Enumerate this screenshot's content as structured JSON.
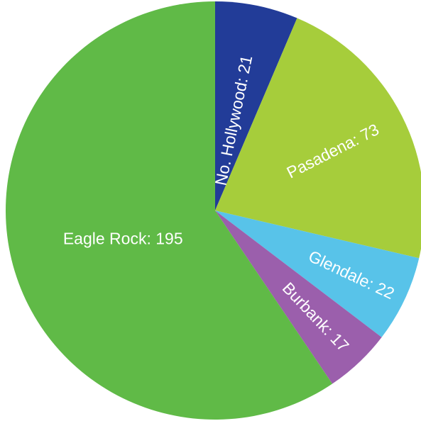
{
  "chart_data": {
    "type": "pie",
    "title": "",
    "start_angle_deg": 0,
    "direction": "clockwise",
    "slices": [
      {
        "label": "No. Hollywood",
        "value": 21,
        "display": "No. Hollywood: 21",
        "color": "#223c98"
      },
      {
        "label": "Pasadena",
        "value": 73,
        "display": "Pasadena: 73",
        "color": "#a6cd3b"
      },
      {
        "label": "Glendale",
        "value": 22,
        "display": "Glendale: 22",
        "color": "#58c3e9"
      },
      {
        "label": "Burbank",
        "value": 17,
        "display": "Burbank: 17",
        "color": "#9b5fac"
      },
      {
        "label": "Eagle Rock",
        "value": 195,
        "display": "Eagle Rock: 195",
        "color": "#60ba47"
      }
    ]
  }
}
